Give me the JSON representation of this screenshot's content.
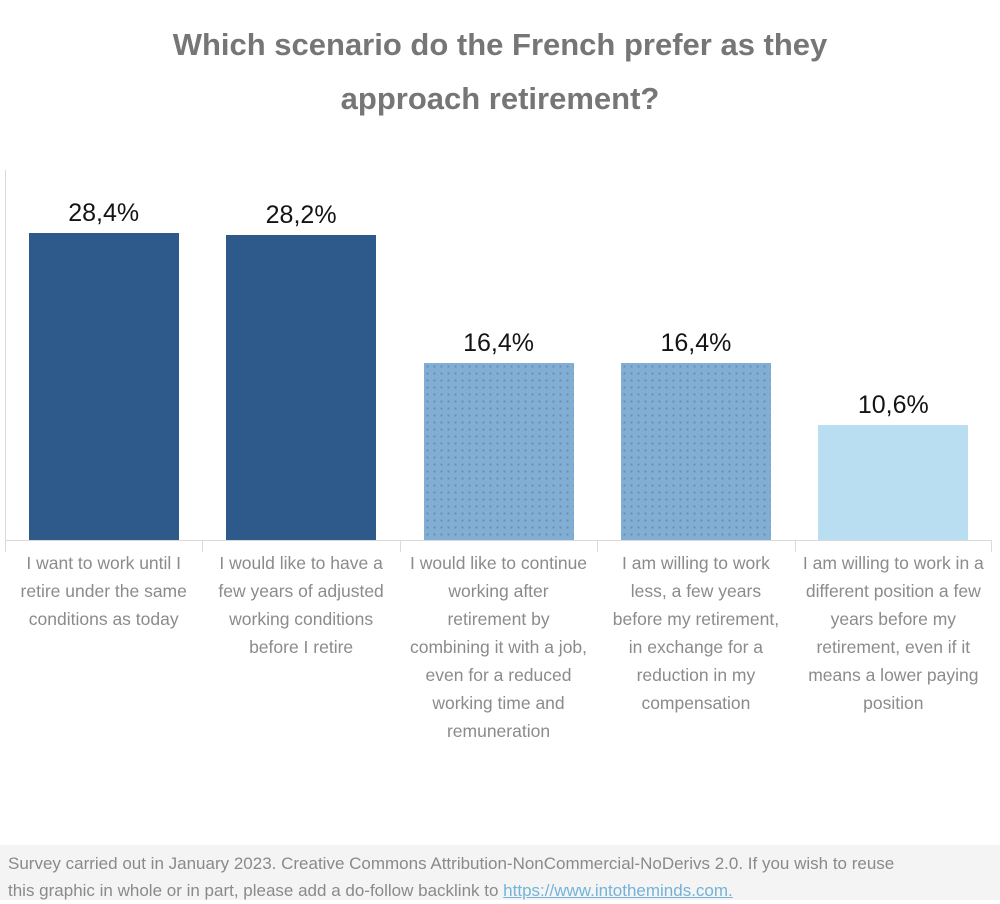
{
  "header": {
    "title_line1": "Which scenario do the French prefer as they",
    "title_line2": "approach retirement?"
  },
  "chart_data": {
    "type": "bar",
    "title": "Which scenario do the French prefer as they approach retirement?",
    "categories": [
      "I want to work until I retire under the same conditions as today",
      "I would like to have a few years of adjusted working conditions before I retire",
      "I would like to continue working after retirement by combining it with a job, even for a reduced working time and remuneration",
      "I am willing to work less, a few years before my retirement, in exchange for a reduction in my compensation",
      "I am willing to work in a different position a few years before my retirement, even if it means a lower paying position"
    ],
    "values": [
      28.4,
      28.2,
      16.4,
      16.4,
      10.6
    ],
    "value_labels": [
      "28,4%",
      "28,2%",
      "16,4%",
      "16,4%",
      "10,6%"
    ],
    "bar_colors": [
      "#2d5a8b",
      "#2d5a8b",
      "#82aed3",
      "#82aed3",
      "#b9ddf1"
    ],
    "bar_textured": [
      false,
      false,
      true,
      true,
      false
    ],
    "xlabel": "",
    "ylabel": "",
    "ylim": [
      0,
      30
    ],
    "grid": false,
    "legend": false,
    "value_label_color": "#141414",
    "category_label_color": "#8b8b8b",
    "axis_line_color": "#d9d9d9"
  },
  "footer": {
    "line1": "Survey carried out in January 2023. Creative Commons Attribution-NonCommercial-NoDerivs 2.0. If you wish to reuse",
    "line2_prefix": "this graphic in whole or in part, please add a do-follow backlink to ",
    "link_text": "https://www.intotheminds.com.",
    "background": "#f4f4f4",
    "text_color": "#8a8a8a",
    "link_color": "#74b3d8"
  }
}
